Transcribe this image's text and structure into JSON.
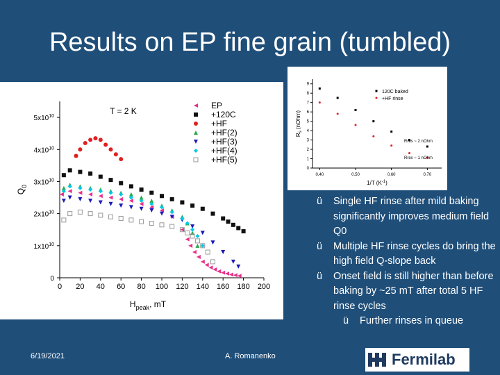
{
  "slide": {
    "title": "Results on EP fine grain (tumbled)",
    "date": "6/19/2021",
    "author": "A. Romanenko",
    "logo_text": "Fermilab",
    "check_mark": "ü",
    "bullets": [
      "Single HF rinse after mild baking significantly improves medium field Q0",
      "Multiple HF rinse cycles do bring the high field Q-slope back",
      "Onset field is still higher than before baking by ~25 mT after total 5 HF rinse cycles"
    ],
    "sub_bullet": "Further rinses in queue",
    "colors": {
      "background": "#1f4e79",
      "text": "#ffffff"
    }
  },
  "chart_data": [
    {
      "type": "scatter",
      "annotation": "T = 2 K",
      "xlabel": "H",
      "xlabel_sub": "peak",
      "xlabel_unit": ", mT",
      "ylabel": "Q",
      "ylabel_sub": "0",
      "xlim": [
        0,
        200
      ],
      "ylim": [
        0,
        55000000000
      ],
      "xticks": [
        "0",
        "20",
        "40",
        "60",
        "80",
        "100",
        "120",
        "140",
        "160",
        "180",
        "200"
      ],
      "yticks": [
        {
          "value": 0,
          "label": "0"
        },
        {
          "value": 10000000000,
          "label": "1x10",
          "exp": "10"
        },
        {
          "value": 20000000000,
          "label": "2x10",
          "exp": "10"
        },
        {
          "value": 30000000000,
          "label": "3x10",
          "exp": "10"
        },
        {
          "value": 40000000000,
          "label": "4x10",
          "exp": "10"
        },
        {
          "value": 50000000000,
          "label": "5x10",
          "exp": "10"
        }
      ],
      "series": [
        {
          "name": "EP",
          "color": "#e8308a",
          "marker": "tri-left",
          "x": [
            2,
            10,
            20,
            30,
            40,
            50,
            60,
            70,
            80,
            90,
            100,
            110,
            120,
            125,
            128,
            132,
            136,
            140,
            144,
            148,
            152,
            156,
            160,
            164,
            168,
            172,
            176
          ],
          "y": [
            26000000000,
            27000000000,
            26500000000,
            26000000000,
            25500000000,
            25000000000,
            24500000000,
            24000000000,
            23000000000,
            22000000000,
            21000000000,
            19000000000,
            15000000000,
            12000000000,
            10000000000,
            8000000000,
            6500000000,
            5000000000,
            4000000000,
            3200000000,
            2600000000,
            2000000000,
            1600000000,
            1300000000,
            1000000000,
            800000000,
            600000000
          ]
        },
        {
          "name": "+120C",
          "color": "#111111",
          "marker": "square",
          "x": [
            4,
            10,
            20,
            30,
            40,
            50,
            60,
            70,
            80,
            90,
            100,
            110,
            120,
            130,
            140,
            150,
            160,
            165,
            170,
            175,
            180
          ],
          "y": [
            32000000000,
            33500000000,
            33000000000,
            32500000000,
            31500000000,
            30500000000,
            29500000000,
            28500000000,
            27500000000,
            26500000000,
            25500000000,
            24500000000,
            23500000000,
            22500000000,
            21500000000,
            20000000000,
            18500000000,
            17500000000,
            16500000000,
            15500000000,
            14500000000
          ]
        },
        {
          "name": "+HF",
          "color": "#e02020",
          "marker": "circle",
          "x": [
            16,
            20,
            25,
            30,
            35,
            40,
            45,
            50,
            55,
            60
          ],
          "y": [
            38000000000,
            40000000000,
            42000000000,
            43000000000,
            43500000000,
            43000000000,
            41500000000,
            40000000000,
            38500000000,
            37000000000
          ]
        },
        {
          "name": "+HF(2)",
          "color": "#2aa84a",
          "marker": "triangle",
          "x": [
            4,
            10,
            20,
            30,
            40,
            50,
            60,
            70,
            80,
            90,
            100,
            110,
            120,
            125,
            130,
            135
          ],
          "y": [
            28000000000,
            29000000000,
            28500000000,
            28000000000,
            27500000000,
            27000000000,
            26500000000,
            26000000000,
            25000000000,
            24000000000,
            22500000000,
            21000000000,
            19000000000,
            17000000000,
            14000000000,
            10000000000
          ]
        },
        {
          "name": "+HF(3)",
          "color": "#1a1ab8",
          "marker": "tri-down",
          "x": [
            4,
            10,
            20,
            30,
            40,
            50,
            60,
            70,
            80,
            90,
            100,
            110,
            120,
            130,
            140,
            150,
            160,
            170,
            175
          ],
          "y": [
            24000000000,
            25000000000,
            24500000000,
            24000000000,
            23500000000,
            23000000000,
            22500000000,
            22000000000,
            21500000000,
            21000000000,
            20000000000,
            19000000000,
            18000000000,
            16000000000,
            14000000000,
            11000000000,
            8000000000,
            5000000000,
            3500000000
          ]
        },
        {
          "name": "+HF(4)",
          "color": "#00c8e8",
          "marker": "diamond",
          "x": [
            4,
            10,
            20,
            30,
            40,
            50,
            60,
            70,
            80,
            90,
            100,
            110,
            120,
            125,
            130,
            135,
            140
          ],
          "y": [
            27000000000,
            28500000000,
            28000000000,
            27500000000,
            27000000000,
            26500000000,
            26000000000,
            25000000000,
            24000000000,
            23000000000,
            22000000000,
            20500000000,
            18500000000,
            17000000000,
            15000000000,
            13000000000,
            10000000000
          ]
        },
        {
          "name": "+HF(5)",
          "color": "#999999",
          "marker": "open-square",
          "x": [
            4,
            10,
            20,
            30,
            40,
            50,
            60,
            70,
            80,
            90,
            100,
            110,
            120,
            125,
            130,
            135,
            140,
            145,
            150
          ],
          "y": [
            18000000000,
            20000000000,
            20500000000,
            20000000000,
            19500000000,
            19000000000,
            18500000000,
            18000000000,
            17500000000,
            17000000000,
            16500000000,
            16000000000,
            15000000000,
            14000000000,
            13000000000,
            11500000000,
            10000000000,
            8000000000,
            5000000000
          ]
        }
      ]
    },
    {
      "type": "scatter",
      "ylabel": "R",
      "ylabel_sub": "s",
      "ylabel_unit": " (nOhm)",
      "xlabel": "1/T (K",
      "xlabel_sup": "-1",
      "xlabel_end": ")",
      "xlim": [
        0.38,
        0.74
      ],
      "ylim": [
        0,
        9.5
      ],
      "xticks": [
        "0.40",
        "0.50",
        "0.60",
        "0.70"
      ],
      "yticks": [
        "0",
        "1",
        "2",
        "3",
        "4",
        "5",
        "6",
        "7",
        "8",
        "9"
      ],
      "annotations": [
        "Rres ~ 2 nOhm",
        "Rres ~ 1 nOhm"
      ],
      "series": [
        {
          "name": "120C baked",
          "color": "#000000",
          "marker": "square",
          "x": [
            0.4,
            0.45,
            0.5,
            0.55,
            0.6,
            0.65,
            0.7
          ],
          "y": [
            8.5,
            7.5,
            6.2,
            5.0,
            3.9,
            3.0,
            2.3
          ]
        },
        {
          "name": "+HF rinse",
          "color": "#e02020",
          "marker": "circle",
          "x": [
            0.4,
            0.45,
            0.5,
            0.55,
            0.6,
            0.65,
            0.7
          ],
          "y": [
            7.0,
            5.8,
            4.6,
            3.4,
            2.4,
            1.6,
            1.1
          ]
        }
      ]
    }
  ]
}
